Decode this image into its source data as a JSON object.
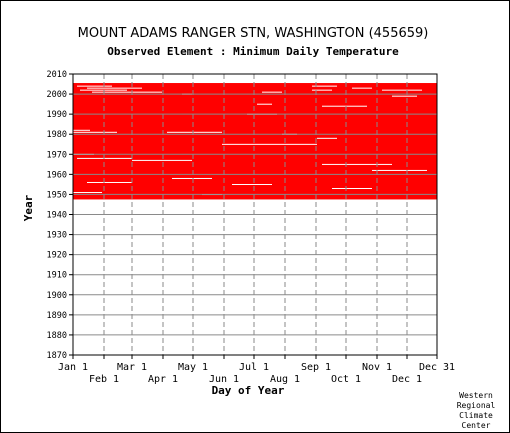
{
  "chart_data": {
    "type": "heatmap",
    "title": "MOUNT ADAMS RANGER STN, WASHINGTON   (455659)",
    "subtitle": "Observed Element : Minimum Daily Temperature",
    "xlabel": "Day of Year",
    "ylabel": "Year",
    "xlim": [
      1,
      365
    ],
    "ylim": [
      1870,
      2010
    ],
    "y_ticks": [
      2010,
      2000,
      1990,
      1980,
      1970,
      1960,
      1950,
      1940,
      1930,
      1920,
      1910,
      1900,
      1890,
      1880,
      1870
    ],
    "x_ticks_top": [
      {
        "label": "Jan 1",
        "day": 1
      },
      {
        "label": "Mar 1",
        "day": 60
      },
      {
        "label": "May 1",
        "day": 121
      },
      {
        "label": "Jul 1",
        "day": 182
      },
      {
        "label": "Sep 1",
        "day": 244
      },
      {
        "label": "Nov 1",
        "day": 305
      },
      {
        "label": "Dec 31",
        "day": 365
      }
    ],
    "x_ticks_bottom": [
      {
        "label": "Feb 1",
        "day": 32
      },
      {
        "label": "Apr 1",
        "day": 91
      },
      {
        "label": "Jun 1",
        "day": 152
      },
      {
        "label": "Aug 1",
        "day": 213
      },
      {
        "label": "Oct 1",
        "day": 274
      },
      {
        "label": "Dec 1",
        "day": 335
      }
    ],
    "grid": true,
    "observed_color": "#ff0000",
    "coverage": {
      "start_year": 1948,
      "end_year": 2005,
      "start_day": 1,
      "end_day": 365
    },
    "gaps": [
      {
        "year": 2004,
        "day_start": 5,
        "day_end": 40
      },
      {
        "year": 2003,
        "day_start": 15,
        "day_end": 70
      },
      {
        "year": 2002,
        "day_start": 8,
        "day_end": 55
      },
      {
        "year": 2001,
        "day_start": 20,
        "day_end": 90
      },
      {
        "year": 2000,
        "day_start": 110,
        "day_end": 120
      },
      {
        "year": 2001,
        "day_start": 190,
        "day_end": 210
      },
      {
        "year": 2002,
        "day_start": 240,
        "day_end": 260
      },
      {
        "year": 2004,
        "day_start": 240,
        "day_end": 265
      },
      {
        "year": 2003,
        "day_start": 280,
        "day_end": 300
      },
      {
        "year": 2002,
        "day_start": 310,
        "day_end": 350
      },
      {
        "year": 1999,
        "day_start": 320,
        "day_end": 345
      },
      {
        "year": 1995,
        "day_start": 185,
        "day_end": 200
      },
      {
        "year": 1994,
        "day_start": 250,
        "day_end": 295
      },
      {
        "year": 1990,
        "day_start": 175,
        "day_end": 205
      },
      {
        "year": 1982,
        "day_start": 1,
        "day_end": 18
      },
      {
        "year": 1981,
        "day_start": 1,
        "day_end": 45
      },
      {
        "year": 1981,
        "day_start": 95,
        "day_end": 150
      },
      {
        "year": 1980,
        "day_start": 210,
        "day_end": 225
      },
      {
        "year": 1978,
        "day_start": 245,
        "day_end": 265
      },
      {
        "year": 1975,
        "day_start": 150,
        "day_end": 245
      },
      {
        "year": 1970,
        "day_start": 1,
        "day_end": 22
      },
      {
        "year": 1968,
        "day_start": 5,
        "day_end": 60
      },
      {
        "year": 1967,
        "day_start": 60,
        "day_end": 120
      },
      {
        "year": 1965,
        "day_start": 250,
        "day_end": 320
      },
      {
        "year": 1962,
        "day_start": 300,
        "day_end": 355
      },
      {
        "year": 1958,
        "day_start": 100,
        "day_end": 140
      },
      {
        "year": 1956,
        "day_start": 15,
        "day_end": 60
      },
      {
        "year": 1955,
        "day_start": 160,
        "day_end": 200
      },
      {
        "year": 1953,
        "day_start": 260,
        "day_end": 300
      },
      {
        "year": 1951,
        "day_start": 1,
        "day_end": 30
      },
      {
        "year": 1950,
        "day_start": 130,
        "day_end": 150
      }
    ]
  },
  "credit": [
    "Western",
    "Regional",
    "Climate",
    "Center"
  ]
}
